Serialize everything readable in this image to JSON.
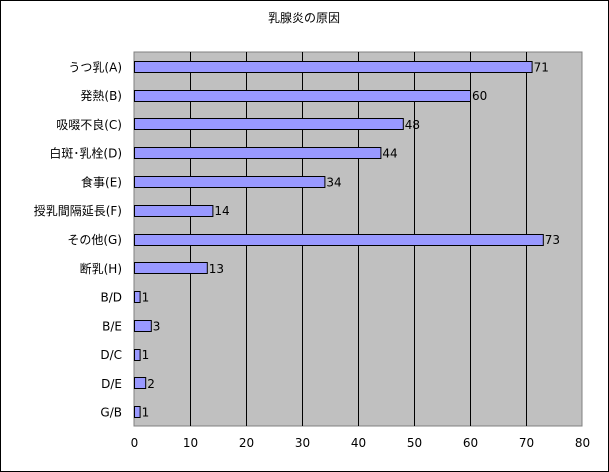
{
  "chart_data": {
    "type": "bar",
    "orientation": "horizontal",
    "title": "乳腺炎の原因",
    "xlabel": "",
    "ylabel": "",
    "categories": [
      "うつ乳(A)",
      "発熱(B)",
      "吸啜不良(C)",
      "白斑･乳栓(D)",
      "食事(E)",
      "授乳間隔延長(F)",
      "その他(G)",
      "断乳(H)",
      "B/D",
      "B/E",
      "D/C",
      "D/E",
      "G/B"
    ],
    "values": [
      71,
      60,
      48,
      44,
      34,
      14,
      73,
      13,
      1,
      3,
      1,
      2,
      1
    ],
    "data_labels": [
      "71",
      "60",
      "48",
      "44",
      "34",
      "14",
      "73",
      "13",
      "1",
      "3",
      "1",
      "2",
      "1"
    ],
    "xlim": [
      0,
      80
    ],
    "x_ticks": [
      "0",
      "10",
      "20",
      "30",
      "40",
      "50",
      "60",
      "70",
      "80"
    ],
    "grid": "vertical",
    "legend": "none",
    "colors": {
      "bar_fill": "#9999ff",
      "bar_stroke": "#000000",
      "plot_bg": "#c0c0c0",
      "gridline": "#000000"
    }
  }
}
